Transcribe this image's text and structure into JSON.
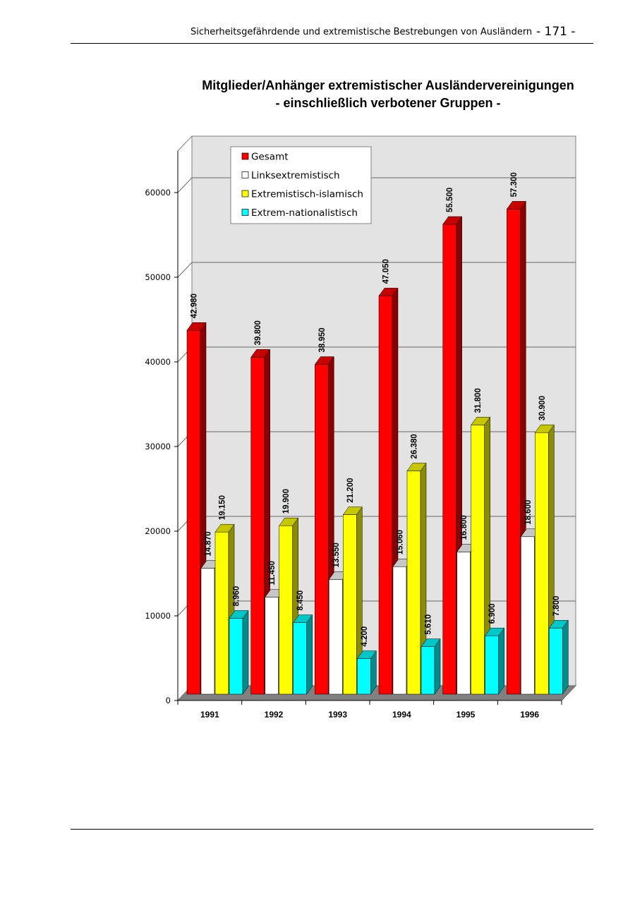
{
  "header": {
    "running_title": "Sicherheitsgefährdende und extremistische Bestrebungen von Ausländern",
    "page_number": "- 171 -"
  },
  "chart_data": {
    "type": "bar",
    "title": "Mitglieder/Anhänger extremistischer Ausländervereinigungen",
    "subtitle": "- einschließlich verbotener Gruppen -",
    "categories": [
      "1991",
      "1992",
      "1993",
      "1994",
      "1995",
      "1996"
    ],
    "series": [
      {
        "name": "Gesamt",
        "color": "#ff0000",
        "values": [
          42980,
          39800,
          38950,
          47050,
          55500,
          57300
        ],
        "labels": [
          "42.980",
          "39.800",
          "38.950",
          "47.050",
          "55.500",
          "57.300"
        ]
      },
      {
        "name": "Linksextremistisch",
        "color": "#ffffff",
        "values": [
          14870,
          11450,
          13550,
          15060,
          16800,
          18600
        ],
        "labels": [
          "14.870",
          "11.450",
          "13.550",
          "15.060",
          "16.800",
          "18.600"
        ]
      },
      {
        "name": "Extremistisch-islamisch",
        "color": "#ffff00",
        "values": [
          19150,
          19900,
          21200,
          26380,
          31800,
          30900
        ],
        "labels": [
          "19.150",
          "19.900",
          "21.200",
          "26.380",
          "31.800",
          "30.900"
        ]
      },
      {
        "name": "Extrem-nationalistisch",
        "color": "#00ffff",
        "values": [
          8960,
          8450,
          4200,
          5610,
          6900,
          7800
        ],
        "labels": [
          "8.960",
          "8.450",
          "4.200",
          "5.610",
          "6.900",
          "7.800"
        ]
      }
    ],
    "yticks": [
      "0",
      "10000",
      "20000",
      "30000",
      "40000",
      "50000",
      "60000"
    ],
    "ylim": [
      0,
      65000
    ],
    "grid": true,
    "legend_position": "top-left",
    "style": "3d-clustered-column"
  }
}
